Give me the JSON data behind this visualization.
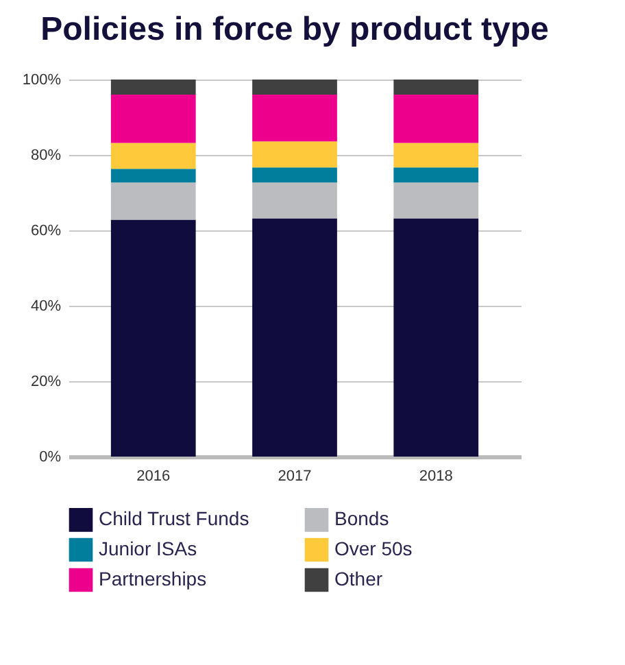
{
  "chart_data": {
    "type": "bar",
    "title": "Policies in force by product type",
    "stacked": true,
    "categories": [
      "2016",
      "2017",
      "2018"
    ],
    "series": [
      {
        "name": "Child Trust Funds",
        "color": "#110c3e",
        "values": [
          62.8,
          63.2,
          63.2
        ]
      },
      {
        "name": "Bonds",
        "color": "#bbbcbf",
        "values": [
          9.9,
          9.5,
          9.5
        ]
      },
      {
        "name": "Junior ISAs",
        "color": "#007e9c",
        "values": [
          3.6,
          4.0,
          4.0
        ]
      },
      {
        "name": "Over 50s",
        "color": "#ffc93c",
        "values": [
          6.9,
          6.9,
          6.5
        ]
      },
      {
        "name": "Partnerships",
        "color": "#ec008c",
        "values": [
          12.8,
          12.4,
          12.8
        ]
      },
      {
        "name": "Other",
        "color": "#404040",
        "values": [
          4.0,
          4.0,
          4.0
        ]
      }
    ],
    "ylim": [
      0,
      100
    ],
    "yticks": [
      {
        "value": 0,
        "label": "0%"
      },
      {
        "value": 20,
        "label": "20%"
      },
      {
        "value": 40,
        "label": "40%"
      },
      {
        "value": 60,
        "label": "60%"
      },
      {
        "value": 80,
        "label": "80%"
      },
      {
        "value": 100,
        "label": "100%"
      }
    ],
    "grid": "y",
    "legend": "bottom"
  }
}
